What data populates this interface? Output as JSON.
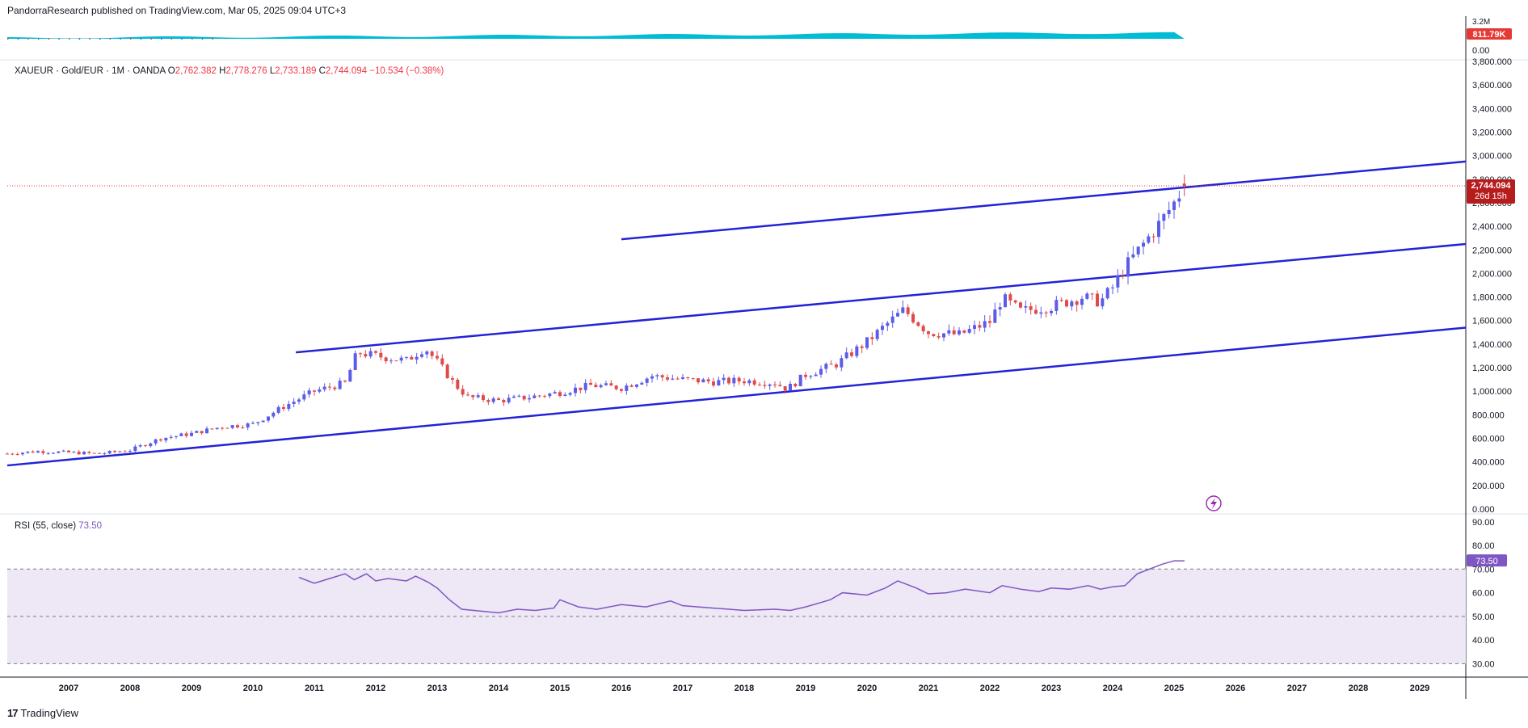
{
  "header": {
    "publisher": "PandorraResearch published on TradingView.com, Mar 05, 2025 09:04 UTC+3"
  },
  "volume_pane": {
    "badge": "811.79K",
    "top_label": "3.2M",
    "zero_label": "0.00"
  },
  "legend": {
    "symbol": "XAUEUR · Gold/EUR · 1M · OANDA",
    "open_label": "O",
    "open": "2,762.382",
    "high_label": "H",
    "high": "2,778.276",
    "low_label": "L",
    "low": "2,733.189",
    "close_label": "C",
    "close": "2,744.094",
    "change": "−10.534 (−0.38%)"
  },
  "price_badge": {
    "price": "2,744.094",
    "countdown": "26d 15h"
  },
  "rsi": {
    "label": "RSI (55, close)",
    "value": "73.50",
    "badge": "73.50"
  },
  "footer": {
    "logo_glyph": "17",
    "brand": "TradingView"
  },
  "colors": {
    "up": "#5b5ce8",
    "down": "#e04a4a",
    "trendline": "#2323d6",
    "rsi_line": "#7e57c2",
    "rsi_band": "#ede7f6",
    "badge_red": "#b71c1c",
    "volume_fill": "#00bcd4"
  },
  "chart_data": [
    {
      "type": "candlestick",
      "title": "XAUEUR · Gold/EUR · 1M · OANDA",
      "x_axis_labels": [
        "2007",
        "2008",
        "2009",
        "2010",
        "2011",
        "2012",
        "2013",
        "2014",
        "2015",
        "2016",
        "2017",
        "2018",
        "2019",
        "2020",
        "2021",
        "2022",
        "2023",
        "2024",
        "2025",
        "2026",
        "2027",
        "2028",
        "2029"
      ],
      "y_axis_labels": [
        "0.000",
        "200.000",
        "400.000",
        "600.000",
        "800.000",
        "1,000.000",
        "1,200.000",
        "1,400.000",
        "1,600.000",
        "1,800.000",
        "2,000.000",
        "2,200.000",
        "2,400.000",
        "2,600.000",
        "2,800.000",
        "3,000.000",
        "3,200.000",
        "3,400.000",
        "3,600.000",
        "3,800.000"
      ],
      "ylim": [
        0,
        3800
      ],
      "xlim": [
        2006.0,
        2029.75
      ],
      "close_series_yearly": {
        "x": [
          2006.0,
          2006.5,
          2007.0,
          2007.5,
          2008.0,
          2008.5,
          2009.0,
          2009.5,
          2010.0,
          2010.5,
          2011.0,
          2011.5,
          2011.7,
          2012.0,
          2012.5,
          2012.8,
          2013.0,
          2013.3,
          2013.5,
          2014.0,
          2014.5,
          2015.0,
          2015.5,
          2016.0,
          2016.5,
          2017.0,
          2017.5,
          2018.0,
          2018.5,
          2018.7,
          2019.0,
          2019.5,
          2020.0,
          2020.3,
          2020.6,
          2021.0,
          2021.5,
          2022.0,
          2022.2,
          2022.5,
          2023.0,
          2023.5,
          2023.8,
          2024.0,
          2024.2,
          2024.5,
          2024.8,
          2025.0,
          2025.17
        ],
        "y": [
          470,
          490,
          480,
          470,
          500,
          600,
          640,
          700,
          720,
          870,
          1000,
          1070,
          1330,
          1300,
          1260,
          1370,
          1250,
          1050,
          950,
          920,
          950,
          990,
          1050,
          1030,
          1130,
          1100,
          1080,
          1090,
          1070,
          1020,
          1140,
          1230,
          1420,
          1560,
          1690,
          1500,
          1480,
          1590,
          1790,
          1680,
          1720,
          1800,
          1760,
          1880,
          2050,
          2250,
          2450,
          2600,
          2744.094
        ]
      },
      "last_candle": {
        "open": 2762.382,
        "high": 2778.276,
        "low": 2733.189,
        "close": 2744.094
      },
      "trendlines": [
        {
          "x": [
            2006.0,
            2029.75
          ],
          "y": [
            370,
            1540
          ]
        },
        {
          "x": [
            2010.7,
            2029.75
          ],
          "y": [
            1330,
            2250
          ]
        },
        {
          "x": [
            2016.0,
            2029.75
          ],
          "y": [
            2290,
            2950
          ]
        }
      ],
      "price_line": 2744.094
    },
    {
      "type": "line",
      "title": "RSI (55, close)",
      "y_axis_labels": [
        "30.00",
        "40.00",
        "50.00",
        "60.00",
        "70.00",
        "80.00",
        "90.00"
      ],
      "ylim": [
        25,
        93
      ],
      "bands": [
        30,
        50,
        70
      ],
      "x": [
        2010.75,
        2011.0,
        2011.25,
        2011.5,
        2011.65,
        2011.85,
        2012.0,
        2012.2,
        2012.5,
        2012.65,
        2012.85,
        2013.0,
        2013.2,
        2013.4,
        2013.6,
        2014.0,
        2014.3,
        2014.6,
        2014.9,
        2015.0,
        2015.3,
        2015.6,
        2016.0,
        2016.4,
        2016.8,
        2017.0,
        2017.5,
        2018.0,
        2018.5,
        2018.75,
        2019.0,
        2019.4,
        2019.6,
        2020.0,
        2020.3,
        2020.5,
        2020.8,
        2021.0,
        2021.3,
        2021.6,
        2022.0,
        2022.2,
        2022.5,
        2022.8,
        2023.0,
        2023.3,
        2023.6,
        2023.8,
        2024.0,
        2024.2,
        2024.4,
        2024.6,
        2024.8,
        2025.0,
        2025.17
      ],
      "y": [
        66.5,
        64,
        66,
        68,
        65.5,
        68,
        65,
        66,
        65,
        67,
        64.5,
        62,
        57,
        53,
        52.5,
        51.5,
        53,
        52.5,
        53.5,
        57,
        54,
        53,
        55,
        54,
        56.5,
        54.5,
        53.5,
        52.5,
        53,
        52.5,
        54,
        57,
        60,
        59,
        62,
        65,
        62,
        59.5,
        60,
        61.5,
        60,
        63,
        61.5,
        60.5,
        62,
        61.5,
        63,
        61.5,
        62.5,
        63,
        68,
        70,
        72,
        73.5,
        73.5
      ]
    },
    {
      "type": "area",
      "title": "Volume",
      "y_axis_labels": [
        "0.00",
        "3.2M"
      ],
      "last_value": "811.79K"
    }
  ]
}
